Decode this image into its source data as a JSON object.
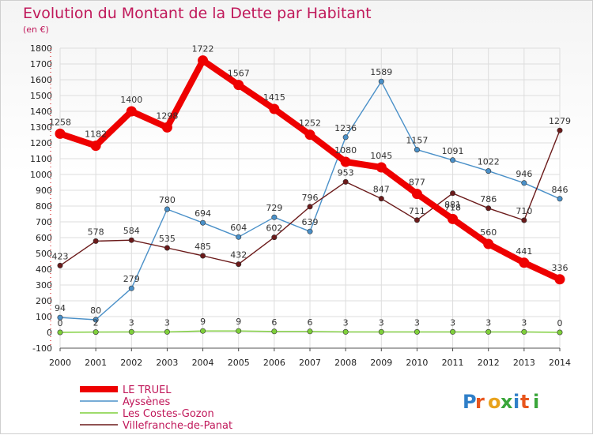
{
  "chart_data": {
    "type": "line",
    "title": "Evolution du Montant de la Dette par Habitant",
    "subtitle": "(en €)",
    "xlabel": "",
    "ylabel": "",
    "x": [
      "2000",
      "2001",
      "2002",
      "2003",
      "2004",
      "2005",
      "2006",
      "2007",
      "2008",
      "2009",
      "2010",
      "2011",
      "2012",
      "2013",
      "2014"
    ],
    "ylim": [
      -100,
      1800
    ],
    "yticks": [
      -100,
      0,
      100,
      200,
      300,
      400,
      500,
      600,
      700,
      800,
      900,
      1000,
      1100,
      1200,
      1300,
      1400,
      1500,
      1600,
      1700,
      1800
    ],
    "grid": true,
    "legend_position": "bottom-left",
    "series": [
      {
        "name": "Ayssènes",
        "color": "#4a90c8",
        "values": [
          94,
          80,
          279,
          780,
          694,
          604,
          729,
          639,
          1236,
          1589,
          1157,
          1091,
          1022,
          946,
          846
        ]
      },
      {
        "name": "Les Costes-Gozon",
        "color": "#7ecf3a",
        "values": [
          0,
          2,
          3,
          3,
          9,
          9,
          6,
          6,
          3,
          3,
          3,
          3,
          3,
          3,
          0
        ]
      },
      {
        "name": "Villefranche-de-Panat",
        "color": "#6b1a1a",
        "values": [
          423,
          578,
          584,
          535,
          485,
          432,
          602,
          796,
          953,
          847,
          711,
          881,
          786,
          710,
          1279
        ]
      },
      {
        "name": "LE TRUEL",
        "color": "#ee0000",
        "values": [
          1258,
          1182,
          1400,
          1298,
          1722,
          1567,
          1415,
          1252,
          1080,
          1045,
          877,
          718,
          560,
          441,
          336
        ]
      }
    ],
    "legend_order": [
      "LE TRUEL",
      "Ayssènes",
      "Les Costes-Gozon",
      "Villefranche-de-Panat"
    ],
    "highlight": "LE TRUEL"
  },
  "logo": {
    "text": "Proxiti"
  }
}
